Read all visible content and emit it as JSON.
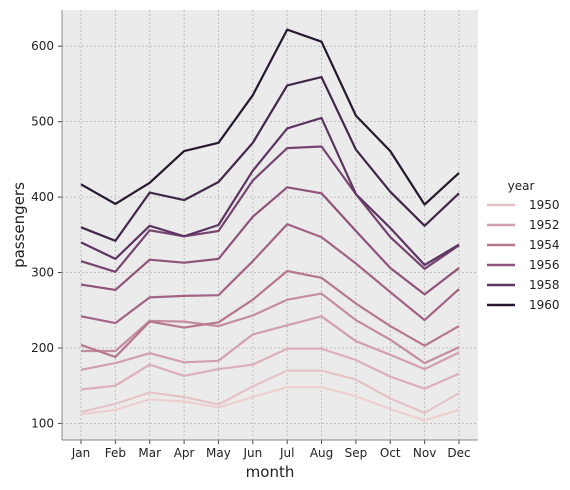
{
  "chart_data": {
    "type": "line",
    "xlabel": "month",
    "ylabel": "passengers",
    "categories": [
      "Jan",
      "Feb",
      "Mar",
      "Apr",
      "May",
      "Jun",
      "Jul",
      "Aug",
      "Sep",
      "Oct",
      "Nov",
      "Dec"
    ],
    "ylim": [
      78,
      648
    ],
    "yticks": [
      100,
      200,
      300,
      400,
      500,
      600
    ],
    "grid": true,
    "legend": {
      "title": "year",
      "placement": "right",
      "entries": [
        {
          "label": "1950",
          "color": "#e6c3c6"
        },
        {
          "label": "1952",
          "color": "#d1a0ad"
        },
        {
          "label": "1954",
          "color": "#b57790"
        },
        {
          "label": "1956",
          "color": "#8f527a"
        },
        {
          "label": "1958",
          "color": "#5d3563"
        },
        {
          "label": "1960",
          "color": "#27182f"
        }
      ]
    },
    "series": [
      {
        "color": "#ecd0d0",
        "values": [
          112,
          118,
          132,
          129,
          121,
          135,
          148,
          148,
          136,
          119,
          104,
          118
        ]
      },
      {
        "name": "1950",
        "color": "#e6c3c6",
        "values": [
          115,
          126,
          141,
          135,
          125,
          149,
          170,
          170,
          158,
          133,
          114,
          140
        ]
      },
      {
        "color": "#dcb0b9",
        "values": [
          145,
          150,
          178,
          163,
          172,
          178,
          199,
          199,
          184,
          162,
          146,
          166
        ]
      },
      {
        "name": "1952",
        "color": "#d1a0ad",
        "values": [
          171,
          180,
          193,
          181,
          183,
          218,
          230,
          242,
          209,
          191,
          172,
          194
        ]
      },
      {
        "color": "#c48c9f",
        "values": [
          196,
          196,
          236,
          235,
          229,
          243,
          264,
          272,
          237,
          211,
          180,
          201
        ]
      },
      {
        "name": "1954",
        "color": "#b57790",
        "values": [
          204,
          188,
          235,
          227,
          234,
          264,
          302,
          293,
          259,
          229,
          203,
          229
        ]
      },
      {
        "color": "#a26484",
        "values": [
          242,
          233,
          267,
          269,
          270,
          315,
          364,
          347,
          312,
          274,
          237,
          278
        ]
      },
      {
        "name": "1956",
        "color": "#8f527a",
        "values": [
          284,
          277,
          317,
          313,
          318,
          374,
          413,
          405,
          355,
          306,
          271,
          306
        ]
      },
      {
        "color": "#76446e",
        "values": [
          315,
          301,
          356,
          348,
          355,
          422,
          465,
          467,
          404,
          347,
          305,
          336
        ]
      },
      {
        "name": "1958",
        "color": "#5d3563",
        "values": [
          340,
          318,
          362,
          348,
          363,
          435,
          491,
          505,
          404,
          359,
          310,
          337
        ]
      },
      {
        "color": "#42274a",
        "values": [
          360,
          342,
          406,
          396,
          420,
          472,
          548,
          559,
          463,
          407,
          362,
          405
        ]
      },
      {
        "name": "1960",
        "color": "#27182f",
        "values": [
          417,
          391,
          419,
          461,
          472,
          535,
          622,
          606,
          508,
          461,
          390,
          432
        ]
      }
    ]
  }
}
